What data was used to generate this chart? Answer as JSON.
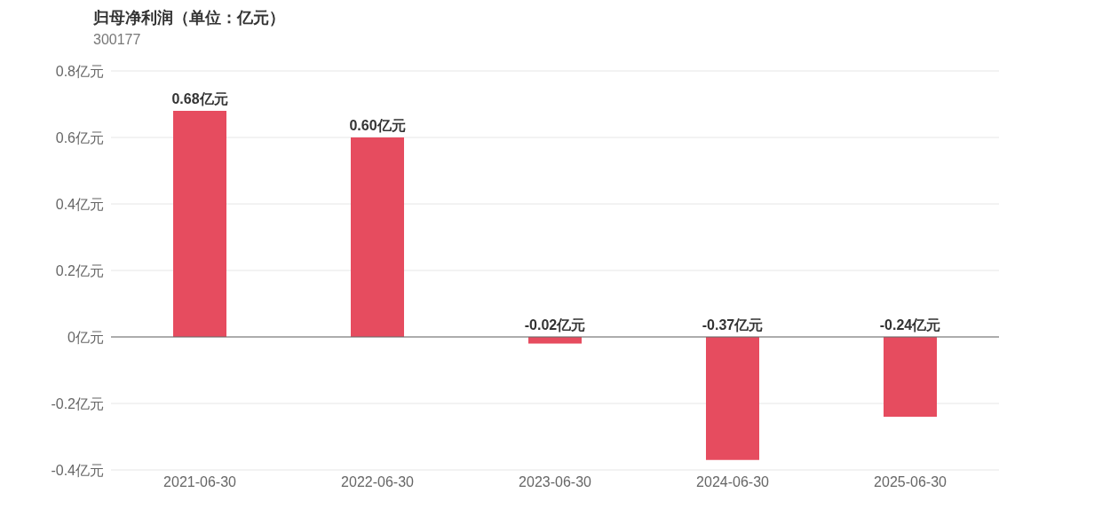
{
  "chart_data": {
    "type": "bar",
    "title": "归母净利润（单位：亿元）",
    "subtitle": "300177",
    "categories": [
      "2021-06-30",
      "2022-06-30",
      "2023-06-30",
      "2024-06-30",
      "2025-06-30"
    ],
    "values": [
      0.68,
      0.6,
      -0.02,
      -0.37,
      -0.24
    ],
    "value_labels": [
      "0.68亿元",
      "0.60亿元",
      "-0.02亿元",
      "-0.37亿元",
      "-0.24亿元"
    ],
    "color": "#e64c5f",
    "ylim": [
      -0.4,
      0.8
    ],
    "yticks": [
      {
        "value": -0.4,
        "label": "-0.4亿元"
      },
      {
        "value": -0.2,
        "label": "-0.2亿元"
      },
      {
        "value": 0,
        "label": "0亿元"
      },
      {
        "value": 0.2,
        "label": "0.2亿元"
      },
      {
        "value": 0.4,
        "label": "0.4亿元"
      },
      {
        "value": 0.6,
        "label": "0.6亿元"
      },
      {
        "value": 0.8,
        "label": "0.8亿元"
      }
    ],
    "grid": "y"
  }
}
